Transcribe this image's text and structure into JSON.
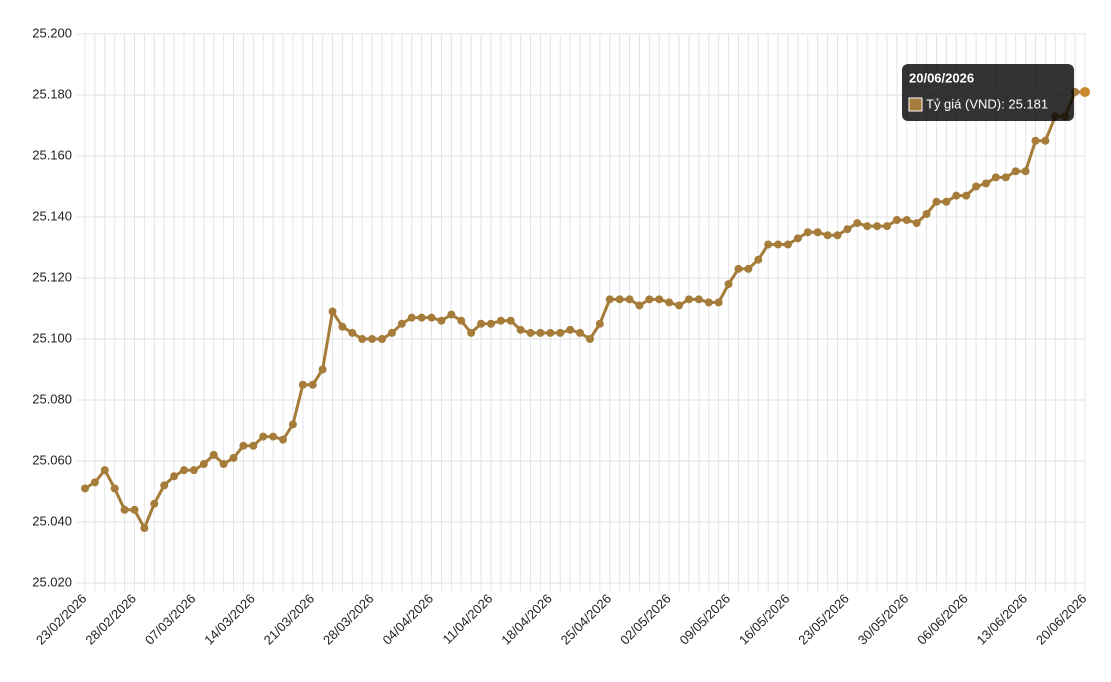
{
  "chart_data": {
    "type": "line",
    "categories": [
      "23/02/2026",
      null,
      null,
      null,
      null,
      "28/02/2026",
      null,
      null,
      null,
      null,
      null,
      "07/03/2026",
      null,
      null,
      null,
      null,
      null,
      "14/03/2026",
      null,
      null,
      null,
      null,
      null,
      "21/03/2026",
      null,
      null,
      null,
      null,
      null,
      "28/03/2026",
      null,
      null,
      null,
      null,
      null,
      "04/04/2026",
      null,
      null,
      null,
      null,
      null,
      "11/04/2026",
      null,
      null,
      null,
      null,
      null,
      "18/04/2026",
      null,
      null,
      null,
      null,
      null,
      "25/04/2026",
      null,
      null,
      null,
      null,
      null,
      "02/05/2026",
      null,
      null,
      null,
      null,
      null,
      "09/05/2026",
      null,
      null,
      null,
      null,
      null,
      "16/05/2026",
      null,
      null,
      null,
      null,
      null,
      "23/05/2026",
      null,
      null,
      null,
      null,
      null,
      "30/05/2026",
      null,
      null,
      null,
      null,
      null,
      "06/06/2026",
      null,
      null,
      null,
      null,
      null,
      "13/06/2026",
      null,
      null,
      null,
      null,
      null,
      "20/06/2026"
    ],
    "series": [
      {
        "name": "Tỷ giá (VND)",
        "color": "#a67c3a",
        "values": [
          25051,
          25053,
          25057,
          25051,
          25044,
          25044,
          25038,
          25046,
          25052,
          25055,
          25057,
          25057,
          25059,
          25062,
          25059,
          25061,
          25065,
          25065,
          25068,
          25068,
          25067,
          25072,
          25085,
          25085,
          25090,
          25109,
          25104,
          25102,
          25100,
          25100,
          25100,
          25102,
          25105,
          25107,
          25107,
          25107,
          25106,
          25108,
          25106,
          25102,
          25105,
          25105,
          25106,
          25106,
          25103,
          25102,
          25102,
          25102,
          25102,
          25103,
          25102,
          25100,
          25105,
          25113,
          25113,
          25113,
          25111,
          25113,
          25113,
          25112,
          25111,
          25113,
          25113,
          25112,
          25112,
          25118,
          25123,
          25123,
          25126,
          25131,
          25131,
          25131,
          25133,
          25135,
          25135,
          25134,
          25134,
          25136,
          25138,
          25137,
          25137,
          25137,
          25139,
          25139,
          25138,
          25141,
          25145,
          25145,
          25147,
          25147,
          25150,
          25151,
          25153,
          25153,
          25155,
          25155,
          25165,
          25165,
          25173,
          25173,
          25181,
          25181
        ]
      }
    ],
    "ylim": [
      25020,
      25200
    ],
    "yticks": [
      {
        "value": 25020,
        "label": "25.020"
      },
      {
        "value": 25040,
        "label": "25.040"
      },
      {
        "value": 25060,
        "label": "25.060"
      },
      {
        "value": 25080,
        "label": "25.080"
      },
      {
        "value": 25100,
        "label": "25.100"
      },
      {
        "value": 25120,
        "label": "25.120"
      },
      {
        "value": 25140,
        "label": "25.140"
      },
      {
        "value": 25160,
        "label": "25.160"
      },
      {
        "value": 25180,
        "label": "25.180"
      },
      {
        "value": 25200,
        "label": "25.200"
      }
    ],
    "grid": true,
    "tooltip": {
      "label": "Tỷ giá (VND): 25.181"
    }
  }
}
